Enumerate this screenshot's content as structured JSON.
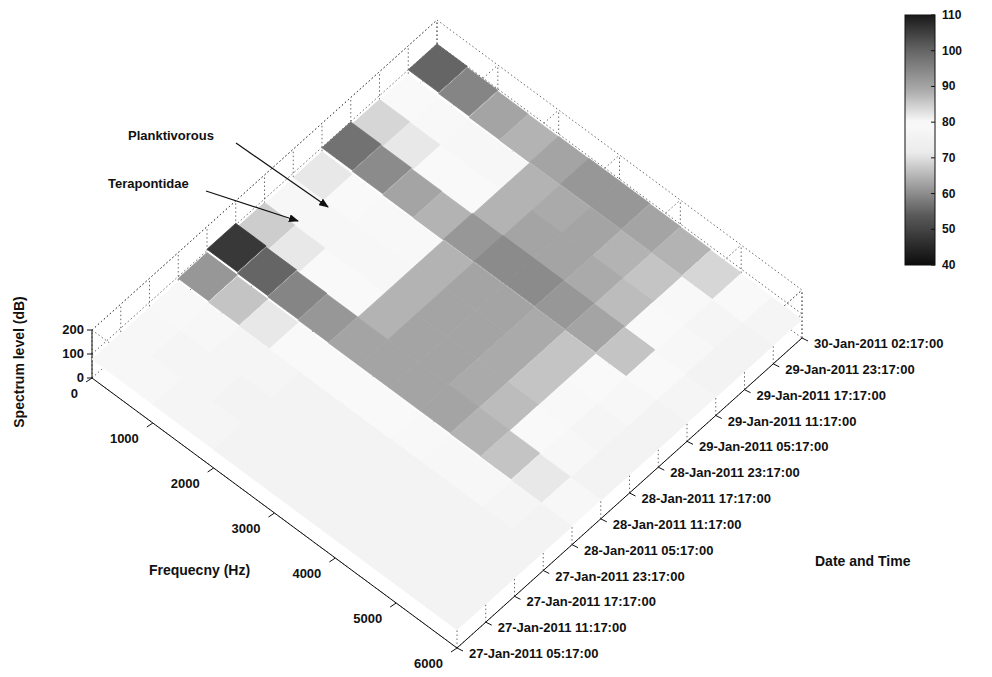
{
  "chart_data": {
    "type": "surface",
    "x_label": "Frequecny (Hz)",
    "y_label": "Date and Time",
    "z_label": "Spectrum level (dB)",
    "xlim": [
      0,
      6000
    ],
    "xticks": [
      0,
      1000,
      2000,
      3000,
      4000,
      5000,
      6000
    ],
    "categories": [
      "27-Jan-2011 05:17:00",
      "27-Jan-2011 11:17:00",
      "27-Jan-2011 17:17:00",
      "27-Jan-2011 23:17:00",
      "28-Jan-2011 05:17:00",
      "28-Jan-2011 11:17:00",
      "28-Jan-2011 17:17:00",
      "28-Jan-2011 23:17:00",
      "29-Jan-2011 05:17:00",
      "29-Jan-2011 11:17:00",
      "29-Jan-2011 17:17:00",
      "29-Jan-2011 23:17:00",
      "30-Jan-2011 02:17:00"
    ],
    "zlim": [
      0,
      200
    ],
    "zticks": [
      0,
      100,
      200
    ],
    "x_bins": [
      0,
      500,
      1000,
      1500,
      2000,
      2500,
      3000,
      3500,
      4000,
      4500,
      5000,
      5500,
      6000
    ],
    "cells": [
      [
        78,
        78,
        77,
        77,
        76,
        76,
        76,
        76,
        76,
        76,
        76,
        76
      ],
      [
        78,
        77,
        77,
        76,
        76,
        76,
        76,
        76,
        76,
        76,
        76,
        76
      ],
      [
        79,
        78,
        77,
        77,
        76,
        76,
        76,
        76,
        76,
        76,
        76,
        76
      ],
      [
        92,
        86,
        82,
        80,
        80,
        80,
        80,
        79,
        78,
        78,
        77,
        76
      ],
      [
        106,
        100,
        95,
        92,
        90,
        90,
        90,
        90,
        88,
        86,
        82,
        78
      ],
      [
        85,
        82,
        80,
        80,
        88,
        90,
        90,
        89,
        87,
        80,
        78,
        76
      ],
      [
        78,
        78,
        78,
        78,
        88,
        90,
        90,
        89,
        86,
        79,
        77,
        76
      ],
      [
        82,
        80,
        79,
        79,
        88,
        90,
        90,
        89,
        86,
        80,
        78,
        76
      ],
      [
        98,
        94,
        90,
        88,
        92,
        94,
        94,
        92,
        90,
        86,
        80,
        77
      ],
      [
        84,
        82,
        80,
        80,
        88,
        90,
        90,
        89,
        87,
        80,
        78,
        76
      ],
      [
        80,
        79,
        78,
        78,
        88,
        89,
        90,
        88,
        86,
        79,
        77,
        76
      ],
      [
        100,
        95,
        90,
        88,
        90,
        92,
        92,
        90,
        88,
        84,
        80,
        77
      ]
    ],
    "colorbar": {
      "range": [
        40,
        110
      ],
      "ticks": [
        40,
        50,
        60,
        70,
        80,
        90,
        100,
        110
      ]
    },
    "annotations": [
      {
        "text": "Planktivorous"
      },
      {
        "text": "Terapontidae"
      }
    ],
    "grid": true
  }
}
